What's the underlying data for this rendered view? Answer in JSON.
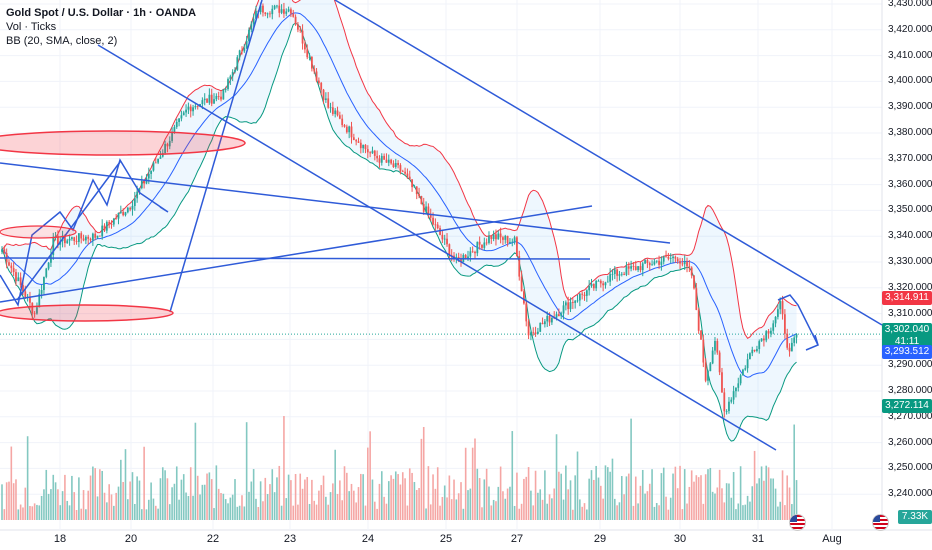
{
  "legend": {
    "symbol": "Gold Spot / U.S. Dollar · 1h · OANDA",
    "volume": "Vol · Ticks",
    "bb": "BB (20, SMA, close, 2)"
  },
  "colors": {
    "up": "#26a69a",
    "down": "#ef5350",
    "vol_up": "#83c8c1",
    "vol_down": "#f5a6a4",
    "bb_upper": "#f23645",
    "bb_lower": "#089981",
    "bb_basis": "#2962ff",
    "bb_fill": "#2196f3",
    "drawing": "#2f5bd8",
    "ellipse": "#f23645"
  },
  "price_tags": {
    "bb_upper": "3,314.911",
    "current": "3,302.040",
    "countdown": "41:11",
    "bb_basis": "3,293.512",
    "bb_lower": "3,272.114",
    "volume": "7.33K"
  },
  "chart_data": {
    "type": "candlestick",
    "title": "Gold Spot / U.S. Dollar · 1h · OANDA",
    "ylim": [
      3230,
      3430
    ],
    "y_ticks": [
      3240,
      3250,
      3260,
      3270,
      3280,
      3290,
      3300,
      3310,
      3320,
      3330,
      3340,
      3350,
      3360,
      3370,
      3380,
      3390,
      3400,
      3410,
      3420,
      3430
    ],
    "y_tick_labels": [
      "3,240.000",
      "3,250.000",
      "3,260.000",
      "3,270.000",
      "3,280.000",
      "3,290.000",
      "3,300.000",
      "3,310.000",
      "3,320.000",
      "3,330.000",
      "3,340.000",
      "3,350.000",
      "3,360.000",
      "3,370.000",
      "3,380.000",
      "3,390.000",
      "3,400.000",
      "3,410.000",
      "3,420.000",
      "3,430.000"
    ],
    "x_ticks": [
      "18",
      "20",
      "22",
      "23",
      "24",
      "25",
      "27",
      "29",
      "30",
      "31",
      "Aug"
    ],
    "key_points": [
      {
        "x": 0,
        "close": 3335
      },
      {
        "x": 14,
        "close": 3310
      },
      {
        "x": 22,
        "close": 3338
      },
      {
        "x": 40,
        "close": 3340
      },
      {
        "x": 55,
        "close": 3352
      },
      {
        "x": 80,
        "close": 3390
      },
      {
        "x": 95,
        "close": 3395
      },
      {
        "x": 110,
        "close": 3428
      },
      {
        "x": 124,
        "close": 3428
      },
      {
        "x": 140,
        "close": 3390
      },
      {
        "x": 158,
        "close": 3372
      },
      {
        "x": 172,
        "close": 3365
      },
      {
        "x": 185,
        "close": 3345
      },
      {
        "x": 195,
        "close": 3330
      },
      {
        "x": 210,
        "close": 3340
      },
      {
        "x": 220,
        "close": 3338
      },
      {
        "x": 226,
        "close": 3302
      },
      {
        "x": 245,
        "close": 3315
      },
      {
        "x": 262,
        "close": 3325
      },
      {
        "x": 280,
        "close": 3330
      },
      {
        "x": 290,
        "close": 3332
      },
      {
        "x": 296,
        "close": 3325
      },
      {
        "x": 302,
        "close": 3285
      },
      {
        "x": 306,
        "close": 3300
      },
      {
        "x": 310,
        "close": 3272
      },
      {
        "x": 322,
        "close": 3296
      },
      {
        "x": 330,
        "close": 3305
      },
      {
        "x": 334,
        "close": 3313
      },
      {
        "x": 338,
        "close": 3294
      },
      {
        "x": 341,
        "close": 3302
      }
    ],
    "bollinger": {
      "period": 20,
      "ma": "SMA",
      "source": "close",
      "mult": 2
    },
    "last": {
      "close": 3302.04,
      "bb_upper": 3314.911,
      "bb_basis": 3293.512,
      "bb_lower": 3272.114,
      "volume": "7.33K"
    }
  }
}
